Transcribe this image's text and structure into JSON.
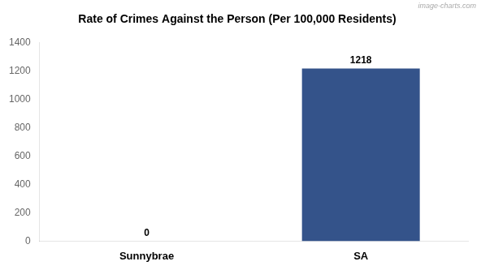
{
  "chart_data": {
    "type": "bar",
    "title": "Rate of Crimes Against the Person (Per 100,000 Residents)",
    "categories": [
      "Sunnybrae",
      "SA"
    ],
    "values": [
      0,
      1218
    ],
    "colors": [
      "#ffffff",
      "#34538a"
    ],
    "ylim": [
      0,
      1400
    ],
    "yticks": [
      0,
      200,
      400,
      600,
      800,
      1000,
      1200,
      1400
    ],
    "grid": false,
    "data_labels": true,
    "annotations": [
      "image-charts.com"
    ]
  }
}
